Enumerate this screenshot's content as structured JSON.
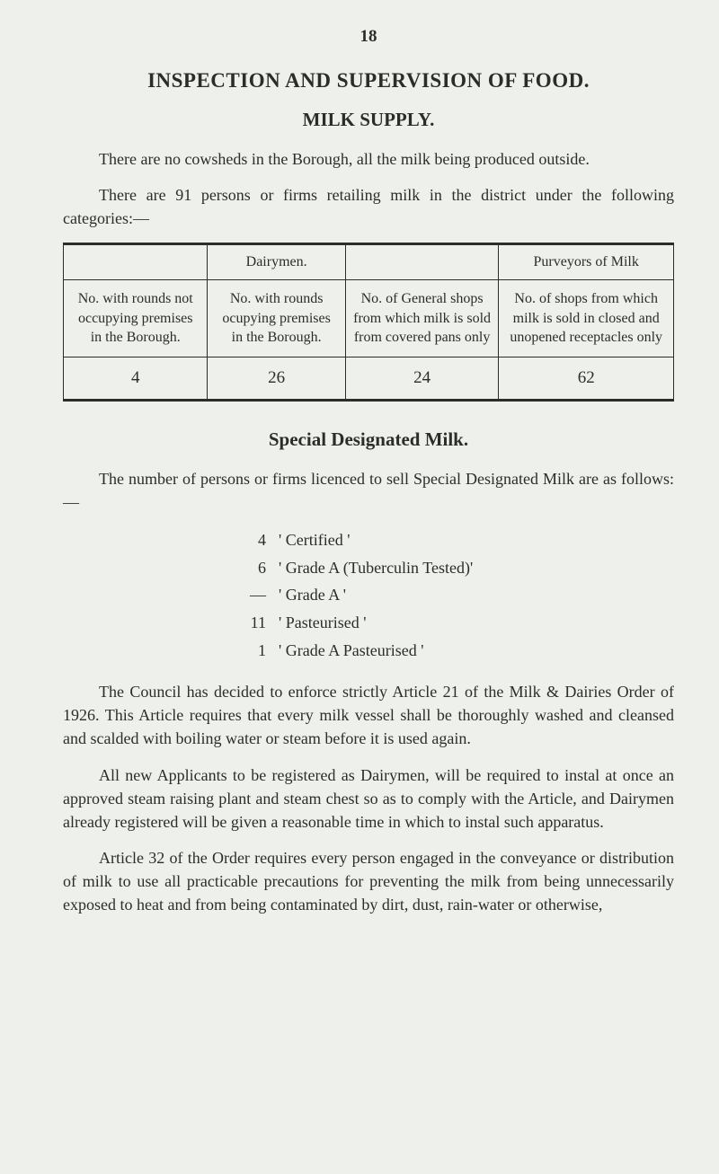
{
  "page_number": "18",
  "title": "INSPECTION AND SUPERVISION OF FOOD.",
  "subtitle": "MILK SUPPLY.",
  "para1": "There are no cowsheds in the Borough, all the milk being produced outside.",
  "para2": "There are 91 persons or firms retailing milk in the district under the following categories:—",
  "table": {
    "row1": {
      "c1": "",
      "c2": "Dairymen.",
      "c3": "",
      "c4": "Purveyors of Milk"
    },
    "row2": {
      "c1": "No. with rounds not occupying premises in the Borough.",
      "c2": "No. with rounds ocupying prem­ises in the Borough.",
      "c3": "No. of General shops from which milk is sold from covered pans only",
      "c4": "No. of shops from which milk is sold in closed and un­opened recepta­cles only"
    },
    "row3": {
      "c1": "4",
      "c2": "26",
      "c3": "24",
      "c4": "62"
    },
    "col_widths": [
      "25%",
      "25%",
      "25%",
      "25%"
    ]
  },
  "section_title": "Special Designated Milk.",
  "para3": "The number of persons or firms licenced to sell Special Designated Milk are as follows:—",
  "list": [
    {
      "num": "4",
      "text": "' Certified '"
    },
    {
      "num": "6",
      "text": "' Grade A (Tuberculin Tested)'"
    },
    {
      "num": "—",
      "text": "' Grade A '"
    },
    {
      "num": "11",
      "text": "' Pasteurised '"
    },
    {
      "num": "1",
      "text": "' Grade A Pasteurised '"
    }
  ],
  "para4": "The Council has decided to enforce strictly Article 21 of the Milk & Dairies Order of 1926. This Article requires that every milk vessel shall be thoroughly washed and cleansed and scalded with boiling water or steam before it is used again.",
  "para5": "All new Applicants to be registered as Dairymen, will be required to instal at once an approved steam raising plant and steam chest so as to comply with the Article, and Dairymen already registered will be given a reasonable time in which to instal such apparatus.",
  "para6": "Article 32 of the Order requires every person engaged in the conveyance or distribution of milk to use all practicable precautions for preventing the milk from being unnecessarily exposed to heat and from being contaminated by dirt, dust, rain-water or other­wise,",
  "colors": {
    "background": "#eef0eb",
    "text": "#2a2e2a",
    "border": "#2a2e2a"
  }
}
